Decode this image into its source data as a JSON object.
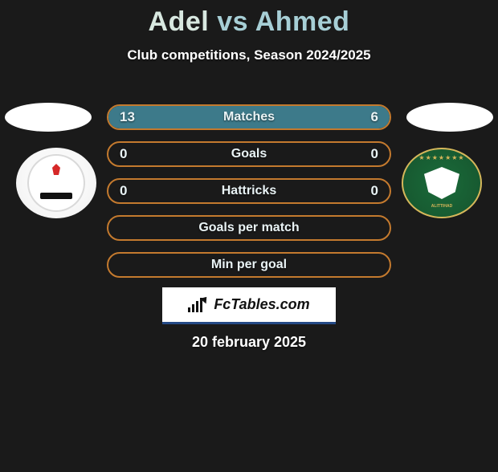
{
  "colors": {
    "background": "#1a1a1a",
    "title_p1": "#d8e8e0",
    "title_vs": "#a7cfd6",
    "title_p2": "#a7cfd6",
    "row_border": "#c47a2e",
    "row_fill": "#3d7a8a",
    "text": "#e9f3f5",
    "brand_accent": "#244a86"
  },
  "header": {
    "player1": "Adel",
    "vs": "vs",
    "player2": "Ahmed",
    "subtitle": "Club competitions, Season 2024/2025"
  },
  "rows": [
    {
      "label": "Matches",
      "left": "13",
      "right": "6",
      "fill_left_pct": 66,
      "fill_right_pct": 34
    },
    {
      "label": "Goals",
      "left": "0",
      "right": "0",
      "fill_left_pct": 0,
      "fill_right_pct": 0
    },
    {
      "label": "Hattricks",
      "left": "0",
      "right": "0",
      "fill_left_pct": 0,
      "fill_right_pct": 0
    },
    {
      "label": "Goals per match",
      "left": "",
      "right": "",
      "fill_left_pct": 0,
      "fill_right_pct": 0
    },
    {
      "label": "Min per goal",
      "left": "",
      "right": "",
      "fill_left_pct": 0,
      "fill_right_pct": 0
    }
  ],
  "brand": {
    "text": "FcTables.com"
  },
  "date": "20 february 2025",
  "crest_right_top": "★★★★★★★",
  "crest_right_txt": "ALITTIHAD"
}
